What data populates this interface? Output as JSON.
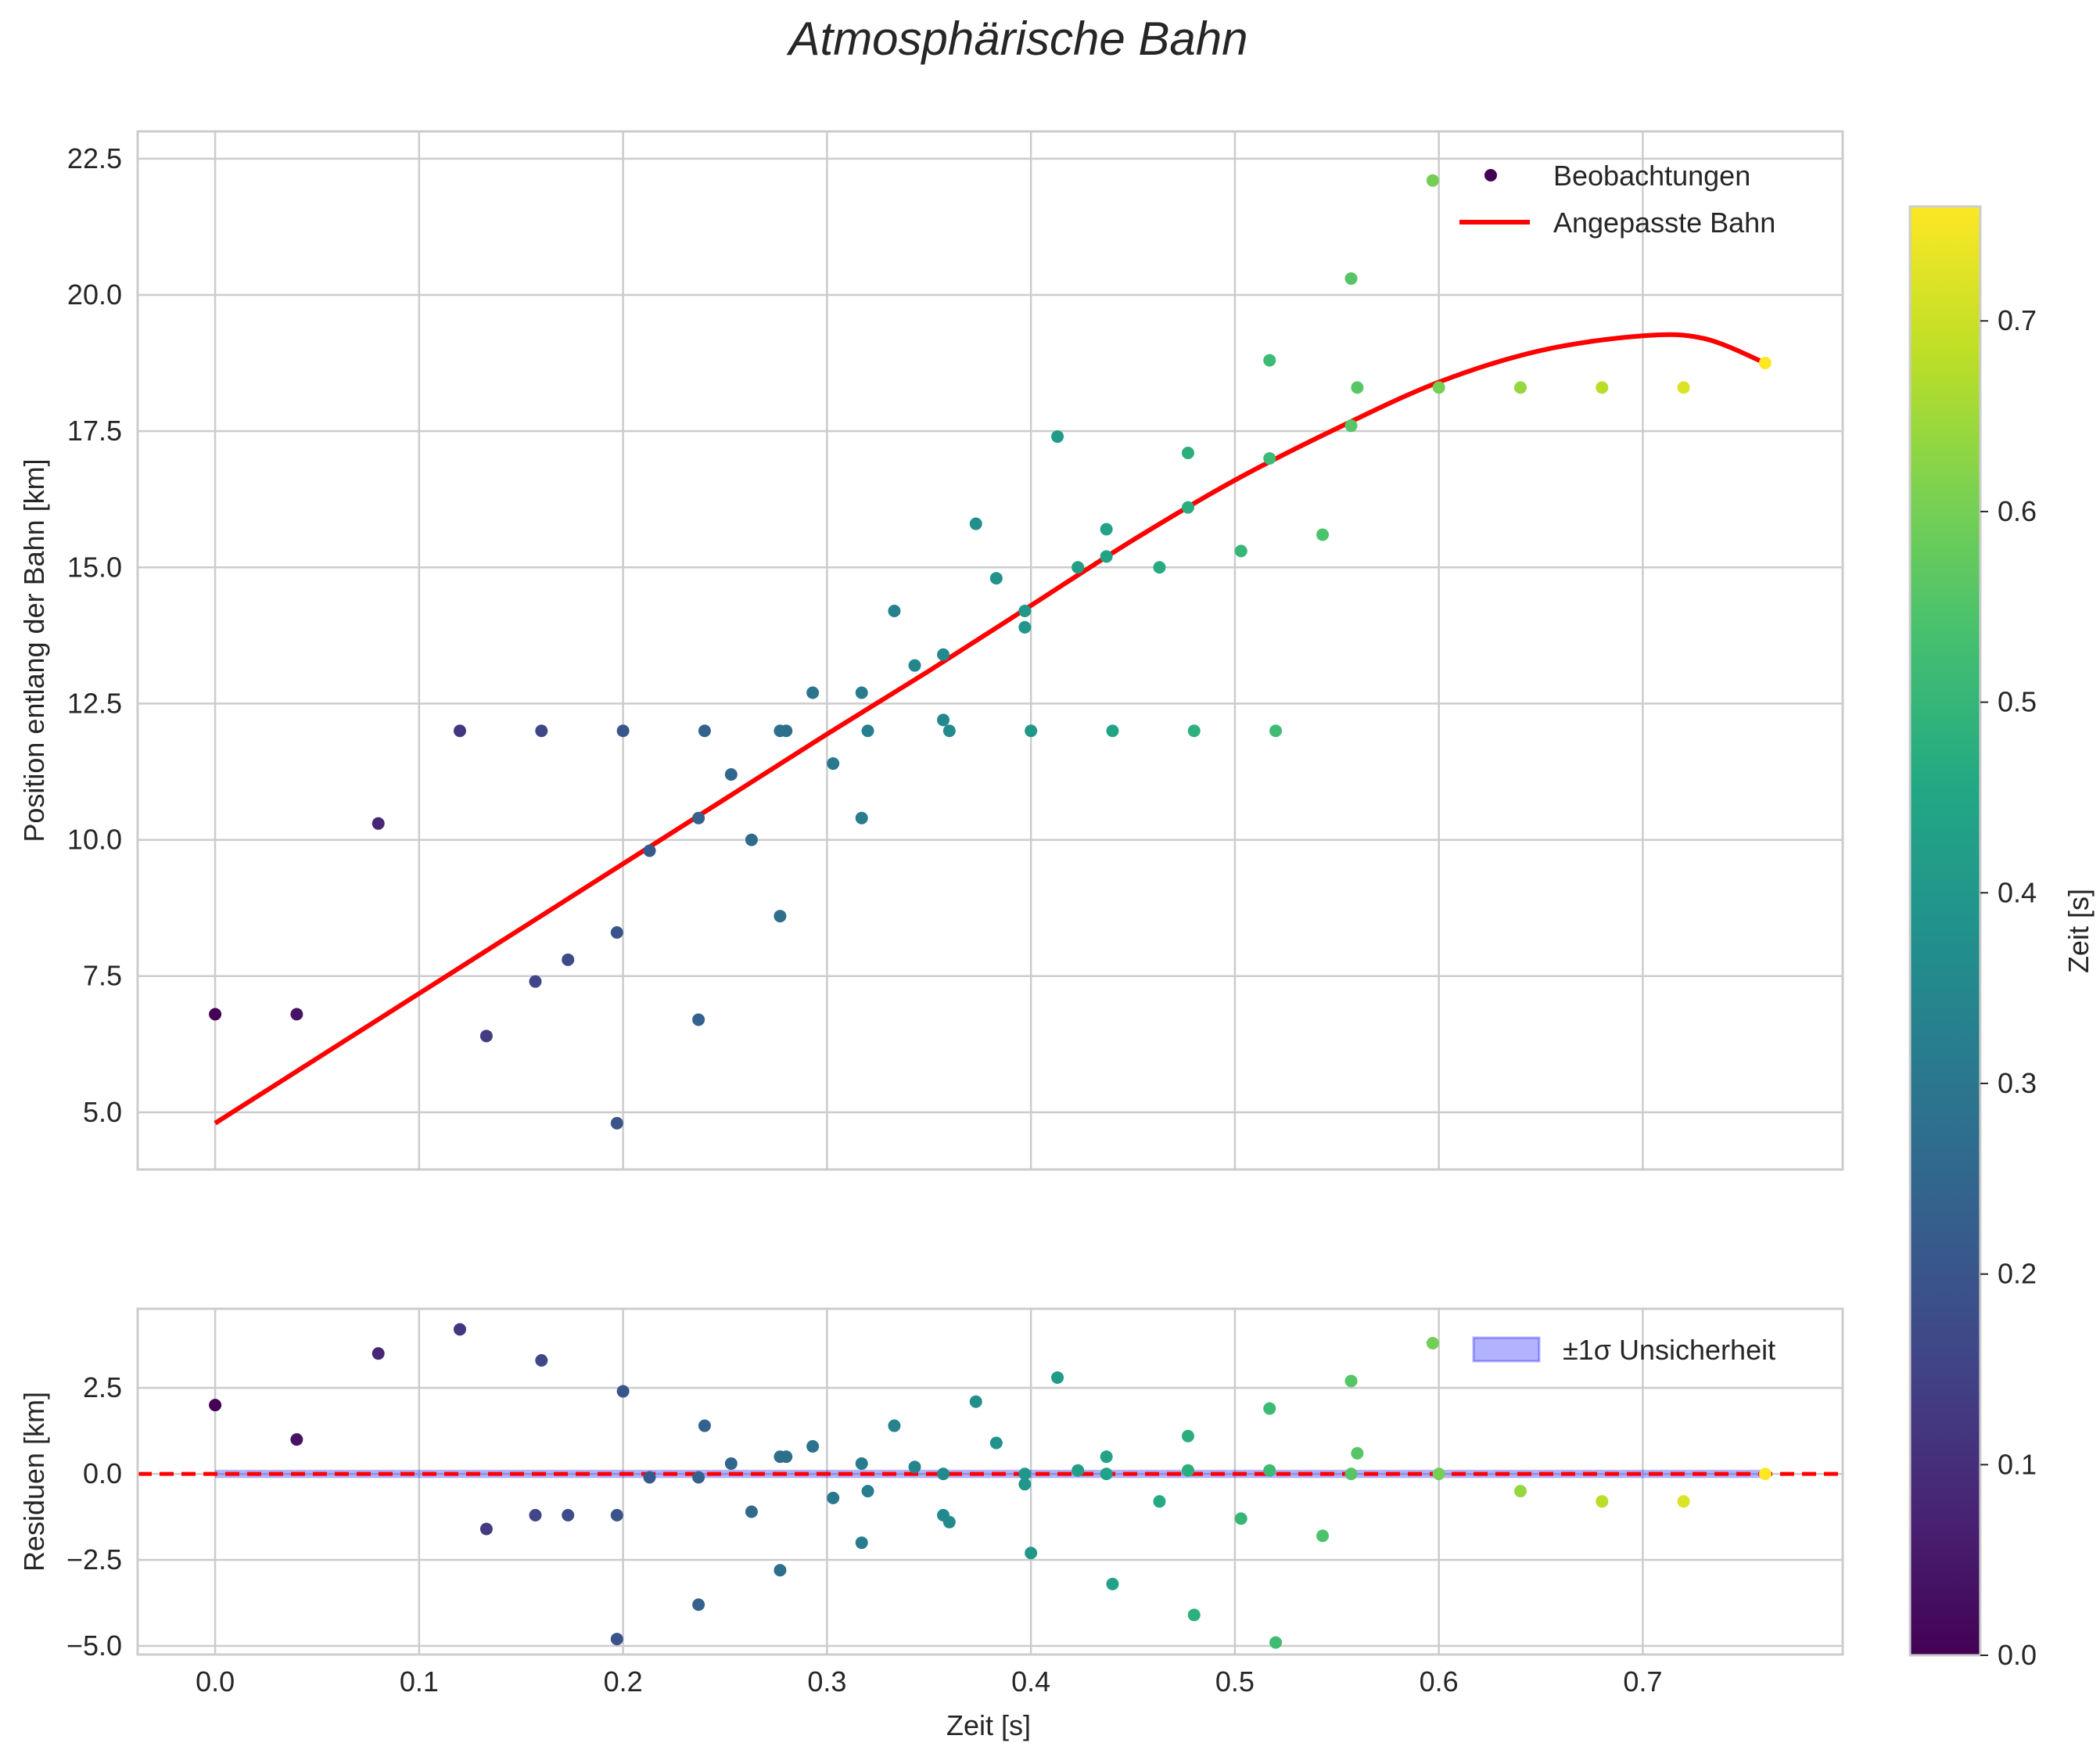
{
  "chart_data": {
    "type": "scatter",
    "title": "Atmosphärische Bahn",
    "panels": {
      "top": {
        "xlabel": "",
        "ylabel": "Position entlang der Bahn [km]",
        "xlim": [
          -0.038,
          0.798
        ],
        "ylim": [
          3.95,
          23.0
        ],
        "xticks": [
          0.0,
          0.1,
          0.2,
          0.3,
          0.4,
          0.5,
          0.6,
          0.7
        ],
        "yticks": [
          5.0,
          7.5,
          10.0,
          12.5,
          15.0,
          17.5,
          20.0,
          22.5
        ],
        "ytick_labels": [
          "5.0",
          "7.5",
          "10.0",
          "12.5",
          "15.0",
          "17.5",
          "20.0",
          "22.5"
        ],
        "grid": true,
        "legend": {
          "position": "top-right",
          "entries": [
            "Beobachtungen",
            "Angepasste Bahn"
          ]
        },
        "fit_curve": {
          "name": "Angepasste Bahn",
          "color": "#ff0000",
          "x": [
            0,
            0.05,
            0.1,
            0.15,
            0.2,
            0.25,
            0.3,
            0.35,
            0.4,
            0.45,
            0.5,
            0.55,
            0.6,
            0.65,
            0.7,
            0.73,
            0.76
          ],
          "y": [
            4.8,
            5.99,
            7.18,
            8.37,
            9.56,
            10.75,
            11.94,
            13.1,
            14.3,
            15.5,
            16.6,
            17.55,
            18.4,
            18.98,
            19.25,
            19.2,
            18.75
          ]
        }
      },
      "bottom": {
        "xlabel": "Zeit [s]",
        "ylabel": "Residuen [km]",
        "xlim": [
          -0.038,
          0.798
        ],
        "ylim": [
          -5.25,
          4.8
        ],
        "xticks": [
          0.0,
          0.1,
          0.2,
          0.3,
          0.4,
          0.5,
          0.6,
          0.7
        ],
        "xtick_labels": [
          "0.0",
          "0.1",
          "0.2",
          "0.3",
          "0.4",
          "0.5",
          "0.6",
          "0.7"
        ],
        "yticks": [
          -5.0,
          -2.5,
          0.0,
          2.5
        ],
        "ytick_labels": [
          "−5.0",
          "−2.5",
          "0.0",
          "2.5"
        ],
        "grid": true,
        "zero_line": {
          "value": 0,
          "color": "#ff0000",
          "style": "dashed"
        },
        "band": {
          "name": "±1σ Unsicherheit",
          "lower": -0.12,
          "upper": 0.12,
          "color": "#0000ff"
        },
        "legend": {
          "position": "top-right",
          "entries": [
            "±1σ Unsicherheit"
          ]
        }
      }
    },
    "colorbar": {
      "label": "Zeit [s]",
      "range": [
        0.0,
        0.76
      ],
      "ticks": [
        0.0,
        0.1,
        0.2,
        0.3,
        0.4,
        0.5,
        0.6,
        0.7
      ],
      "tick_labels": [
        "0.0",
        "0.1",
        "0.2",
        "0.3",
        "0.4",
        "0.5",
        "0.6",
        "0.7"
      ],
      "colormap": "viridis"
    },
    "observations": [
      {
        "t": 0.0,
        "pos": 6.8,
        "res": 2.0
      },
      {
        "t": 0.04,
        "pos": 6.8,
        "res": 1.0
      },
      {
        "t": 0.08,
        "pos": 10.3,
        "res": 3.5
      },
      {
        "t": 0.12,
        "pos": 12.0,
        "res": 4.2
      },
      {
        "t": 0.133,
        "pos": 6.4,
        "res": -1.6
      },
      {
        "t": 0.157,
        "pos": 7.4,
        "res": -1.2
      },
      {
        "t": 0.16,
        "pos": 12.0,
        "res": 3.3
      },
      {
        "t": 0.173,
        "pos": 7.8,
        "res": -1.2
      },
      {
        "t": 0.197,
        "pos": 8.3,
        "res": -1.2
      },
      {
        "t": 0.197,
        "pos": 4.8,
        "res": -4.8
      },
      {
        "t": 0.2,
        "pos": 12.0,
        "res": 2.4
      },
      {
        "t": 0.213,
        "pos": 9.8,
        "res": -0.1
      },
      {
        "t": 0.237,
        "pos": 10.4,
        "res": -0.1
      },
      {
        "t": 0.237,
        "pos": 6.7,
        "res": -3.8
      },
      {
        "t": 0.24,
        "pos": 12.0,
        "res": 1.4
      },
      {
        "t": 0.253,
        "pos": 11.2,
        "res": 0.3
      },
      {
        "t": 0.263,
        "pos": 10.0,
        "res": -1.1
      },
      {
        "t": 0.277,
        "pos": 12.0,
        "res": 0.5
      },
      {
        "t": 0.277,
        "pos": 8.6,
        "res": -2.8
      },
      {
        "t": 0.28,
        "pos": 12.0,
        "res": 0.5
      },
      {
        "t": 0.293,
        "pos": 12.7,
        "res": 0.8
      },
      {
        "t": 0.303,
        "pos": 11.4,
        "res": -0.7
      },
      {
        "t": 0.317,
        "pos": 12.7,
        "res": 0.3
      },
      {
        "t": 0.317,
        "pos": 10.4,
        "res": -2.0
      },
      {
        "t": 0.32,
        "pos": 12.0,
        "res": -0.5
      },
      {
        "t": 0.333,
        "pos": 14.2,
        "res": 1.4
      },
      {
        "t": 0.343,
        "pos": 13.2,
        "res": 0.2
      },
      {
        "t": 0.357,
        "pos": 13.4,
        "res": 0.0
      },
      {
        "t": 0.357,
        "pos": 12.2,
        "res": -1.2
      },
      {
        "t": 0.36,
        "pos": 12.0,
        "res": -1.4
      },
      {
        "t": 0.373,
        "pos": 15.8,
        "res": 2.1
      },
      {
        "t": 0.383,
        "pos": 14.8,
        "res": 0.9
      },
      {
        "t": 0.397,
        "pos": 14.2,
        "res": 0.0
      },
      {
        "t": 0.397,
        "pos": 13.9,
        "res": -0.3
      },
      {
        "t": 0.4,
        "pos": 12.0,
        "res": -2.3
      },
      {
        "t": 0.413,
        "pos": 17.4,
        "res": 2.8
      },
      {
        "t": 0.423,
        "pos": 15.0,
        "res": 0.1
      },
      {
        "t": 0.437,
        "pos": 15.7,
        "res": 0.5
      },
      {
        "t": 0.437,
        "pos": 15.2,
        "res": 0.0
      },
      {
        "t": 0.44,
        "pos": 12.0,
        "res": -3.2
      },
      {
        "t": 0.463,
        "pos": 15.0,
        "res": -0.8
      },
      {
        "t": 0.477,
        "pos": 17.1,
        "res": 1.1
      },
      {
        "t": 0.477,
        "pos": 16.1,
        "res": 0.1
      },
      {
        "t": 0.48,
        "pos": 12.0,
        "res": -4.1
      },
      {
        "t": 0.503,
        "pos": 15.3,
        "res": -1.3
      },
      {
        "t": 0.517,
        "pos": 18.8,
        "res": 1.9
      },
      {
        "t": 0.517,
        "pos": 17.0,
        "res": 0.1
      },
      {
        "t": 0.52,
        "pos": 12.0,
        "res": -4.9
      },
      {
        "t": 0.543,
        "pos": 15.6,
        "res": -1.8
      },
      {
        "t": 0.557,
        "pos": 20.3,
        "res": 2.7
      },
      {
        "t": 0.557,
        "pos": 17.6,
        "res": 0.0
      },
      {
        "t": 0.56,
        "pos": 18.3,
        "res": 0.6
      },
      {
        "t": 0.597,
        "pos": 22.1,
        "res": 3.8
      },
      {
        "t": 0.6,
        "pos": 18.3,
        "res": 0.0
      },
      {
        "t": 0.64,
        "pos": 18.3,
        "res": -0.5
      },
      {
        "t": 0.68,
        "pos": 18.3,
        "res": -0.8
      },
      {
        "t": 0.72,
        "pos": 18.3,
        "res": -0.8
      },
      {
        "t": 0.76,
        "pos": 18.75,
        "res": 0.0
      }
    ]
  }
}
